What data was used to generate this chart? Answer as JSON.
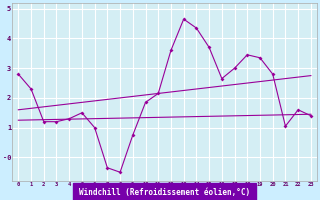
{
  "xlabel": "Windchill (Refroidissement éolien,°C)",
  "background_color": "#cceeff",
  "plot_bg_color": "#d4eef4",
  "grid_color": "#ffffff",
  "line_color": "#990099",
  "axis_label_bg": "#7700aa",
  "xlim": [
    -0.5,
    23.5
  ],
  "ylim": [
    -0.8,
    5.2
  ],
  "xticks": [
    0,
    1,
    2,
    3,
    4,
    5,
    6,
    7,
    8,
    9,
    10,
    11,
    12,
    13,
    14,
    15,
    16,
    17,
    18,
    19,
    20,
    21,
    22,
    23
  ],
  "yticks": [
    0,
    1,
    2,
    3,
    4,
    5
  ],
  "ytick_labels": [
    "-0",
    "1",
    "2",
    "3",
    "4",
    "5"
  ],
  "series1_x": [
    0,
    1,
    2,
    3,
    4,
    5,
    6,
    7,
    8,
    9,
    10,
    11,
    12,
    13,
    14,
    15,
    16,
    17,
    18,
    19,
    20,
    21,
    22,
    23
  ],
  "series1_y": [
    2.8,
    2.3,
    1.2,
    1.2,
    1.3,
    1.5,
    1.0,
    -0.35,
    -0.5,
    0.75,
    1.85,
    2.15,
    3.6,
    4.65,
    4.35,
    3.7,
    2.65,
    3.0,
    3.45,
    3.35,
    2.8,
    1.05,
    1.6,
    1.4
  ],
  "series2_x": [
    0,
    23
  ],
  "series2_y": [
    1.25,
    1.45
  ],
  "series3_x": [
    0,
    23
  ],
  "series3_y": [
    1.6,
    2.75
  ]
}
